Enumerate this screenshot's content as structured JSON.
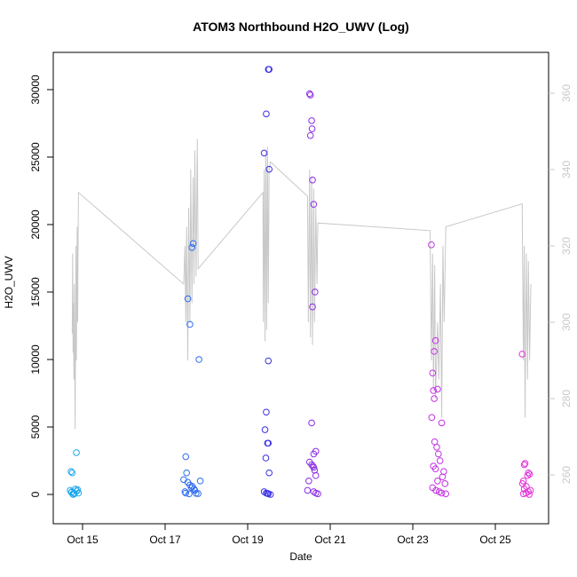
{
  "chart_data": {
    "type": "scatter",
    "title": "ATOM3 Northbound H2O_UWV (Log)",
    "xlabel": "Date",
    "ylabel": "H2O_UWV",
    "xlim": [
      14.29,
      26.29
    ],
    "xticks": [
      {
        "value": 15,
        "label": "Oct 15"
      },
      {
        "value": 17,
        "label": "Oct 17"
      },
      {
        "value": 19,
        "label": "Oct 19"
      },
      {
        "value": 21,
        "label": "Oct 21"
      },
      {
        "value": 23,
        "label": "Oct 23"
      },
      {
        "value": 25,
        "label": "Oct 25"
      }
    ],
    "ylim": [
      -2170,
      32760
    ],
    "yticks": [
      0,
      5000,
      10000,
      15000,
      20000,
      25000,
      30000
    ],
    "y2lim": [
      247.2,
      370.7
    ],
    "y2ticks": [
      260,
      280,
      300,
      320,
      340,
      360
    ],
    "y2color": "#c8c8c8",
    "series": [
      {
        "type": "line",
        "axis": "y2",
        "color": "#c8c8c8",
        "x": [
          14.75,
          14.76,
          14.77,
          14.78,
          14.79,
          14.8,
          14.82,
          14.84,
          14.85,
          14.87,
          14.88,
          14.9,
          17.45,
          17.48,
          17.5,
          17.52,
          17.55,
          17.57,
          17.6,
          17.62,
          17.65,
          17.68,
          17.7,
          17.72,
          17.75,
          17.78,
          17.8,
          19.37,
          19.38,
          19.4,
          19.42,
          19.44,
          19.46,
          19.48,
          19.5,
          19.52,
          19.55,
          20.45,
          20.47,
          20.5,
          20.52,
          20.55,
          20.57,
          20.6,
          20.62,
          20.65,
          20.68,
          20.7,
          23.42,
          23.45,
          23.48,
          23.5,
          23.53,
          23.55,
          23.6,
          23.63,
          23.67,
          23.7,
          23.73,
          23.76,
          23.8,
          25.65,
          25.68,
          25.7,
          25.72,
          25.75,
          25.78,
          25.8,
          25.83,
          25.86
        ],
        "values": [
          297,
          318,
          292,
          305,
          285,
          310,
          272,
          320,
          290,
          325,
          300,
          334,
          310,
          320,
          300,
          325,
          290,
          330,
          300,
          340,
          305,
          338,
          310,
          345,
          312,
          348,
          314,
          334,
          300,
          340,
          295,
          345,
          298,
          346,
          305,
          340,
          342,
          333,
          300,
          340,
          296,
          338,
          294,
          335,
          300,
          330,
          310,
          326,
          324,
          290,
          318,
          282,
          315,
          280,
          300,
          285,
          310,
          275,
          320,
          300,
          325,
          331,
          290,
          320,
          275,
          318,
          285,
          316,
          290,
          310
        ]
      },
      {
        "color": "#1ea7ee",
        "x": [
          14.72,
          14.75,
          14.85,
          14.7,
          14.74,
          14.78,
          14.8,
          14.83,
          14.86,
          14.77,
          14.88,
          14.73,
          14.9
        ],
        "values": [
          1700,
          1600,
          3100,
          300,
          200,
          100,
          50,
          400,
          250,
          0,
          350,
          150,
          100
        ]
      },
      {
        "color": "#2f6cf0",
        "x": [
          17.5,
          17.52,
          17.55,
          17.6,
          17.65,
          17.68,
          17.82,
          17.45,
          17.55,
          17.6,
          17.64,
          17.7,
          17.72,
          17.48,
          17.5,
          17.58,
          17.75,
          17.8,
          17.85,
          17.66
        ],
        "values": [
          2800,
          1600,
          14500,
          12600,
          18300,
          18600,
          10000,
          1100,
          900,
          700,
          500,
          400,
          300,
          200,
          100,
          50,
          80,
          60,
          1000,
          600
        ]
      },
      {
        "color": "#3a30e6",
        "x": [
          19.5,
          19.52,
          19.45,
          19.4,
          19.52,
          19.5,
          19.45,
          19.42,
          19.48,
          19.5,
          19.44,
          19.52,
          19.4,
          19.45,
          19.5,
          19.55,
          19.48
        ],
        "values": [
          31500,
          31500,
          28200,
          25300,
          24100,
          9900,
          6100,
          4800,
          3800,
          3800,
          2700,
          1600,
          200,
          100,
          50,
          0,
          80
        ]
      },
      {
        "color": "#8b2de6",
        "x": [
          20.5,
          20.52,
          20.55,
          20.56,
          20.52,
          20.57,
          20.6,
          20.63,
          20.57,
          20.55,
          20.65,
          20.6,
          20.5,
          20.55,
          20.58,
          20.6,
          20.62,
          20.65,
          20.48,
          20.45,
          20.6,
          20.65,
          20.7
        ],
        "values": [
          29700,
          29600,
          27700,
          27100,
          26600,
          23300,
          21500,
          15000,
          13900,
          5300,
          3200,
          3000,
          2400,
          2200,
          2100,
          2000,
          1800,
          1400,
          1000,
          300,
          200,
          100,
          50
        ]
      },
      {
        "color": "#c331e2",
        "x": [
          23.45,
          23.55,
          23.52,
          23.48,
          23.6,
          23.5,
          23.52,
          23.46,
          23.7,
          23.53,
          23.58,
          23.62,
          23.66,
          23.5,
          23.55,
          23.75,
          23.72,
          23.6,
          23.78,
          23.48,
          23.56,
          23.64,
          23.7,
          23.8
        ],
        "values": [
          18500,
          11400,
          10600,
          9000,
          7800,
          7700,
          7100,
          5700,
          5300,
          3900,
          3500,
          3000,
          2500,
          2100,
          1900,
          1700,
          1300,
          1000,
          800,
          500,
          300,
          200,
          100,
          50
        ]
      },
      {
        "color": "#e232d8",
        "x": [
          25.65,
          25.72,
          25.7,
          25.8,
          25.83,
          25.78,
          25.68,
          25.66,
          25.75,
          25.7,
          25.85,
          25.8,
          25.74,
          25.68,
          25.82
        ],
        "values": [
          10400,
          2300,
          2200,
          1600,
          1500,
          1400,
          1000,
          800,
          600,
          400,
          300,
          200,
          100,
          50,
          0
        ]
      }
    ]
  }
}
